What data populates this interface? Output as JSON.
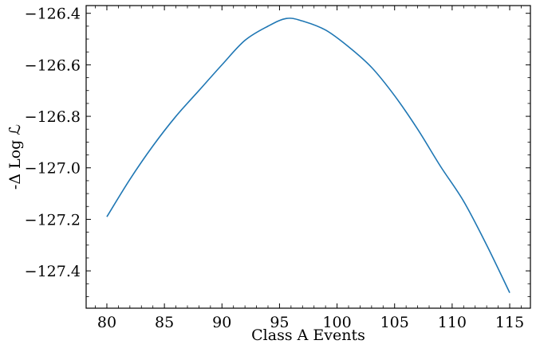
{
  "chart_data": {
    "type": "line",
    "title": "",
    "xlabel": "Class A Events",
    "ylabel": "-Δ Log ℒ",
    "xlim": [
      78.2,
      116.8
    ],
    "ylim": [
      -127.545,
      -126.37
    ],
    "xticks": [
      80,
      85,
      90,
      95,
      100,
      105,
      110,
      115
    ],
    "xtick_labels": [
      "80",
      "85",
      "90",
      "95",
      "100",
      "105",
      "110",
      "115"
    ],
    "yticks": [
      -127.4,
      -127.2,
      -127.0,
      -126.8,
      -126.6,
      -126.4
    ],
    "ytick_labels": [
      "−127.4",
      "−127.2",
      "−127.0",
      "−126.8",
      "−126.6",
      "−126.4"
    ],
    "x_minor_step": 1,
    "y_minor_step": 0.05,
    "ticks_direction": "in",
    "grid": false,
    "legend": "none",
    "series": [
      {
        "color": "#1f77b4",
        "x": [
          80,
          82,
          84,
          86,
          88,
          90,
          92,
          94,
          95.6,
          97,
          99,
          101,
          103,
          105,
          107,
          109,
          111,
          113,
          115
        ],
        "y": [
          -127.19,
          -127.045,
          -126.915,
          -126.8,
          -126.7,
          -126.6,
          -126.505,
          -126.45,
          -126.42,
          -126.43,
          -126.465,
          -126.53,
          -126.61,
          -126.72,
          -126.85,
          -126.995,
          -127.13,
          -127.3,
          -127.485
        ]
      }
    ]
  }
}
